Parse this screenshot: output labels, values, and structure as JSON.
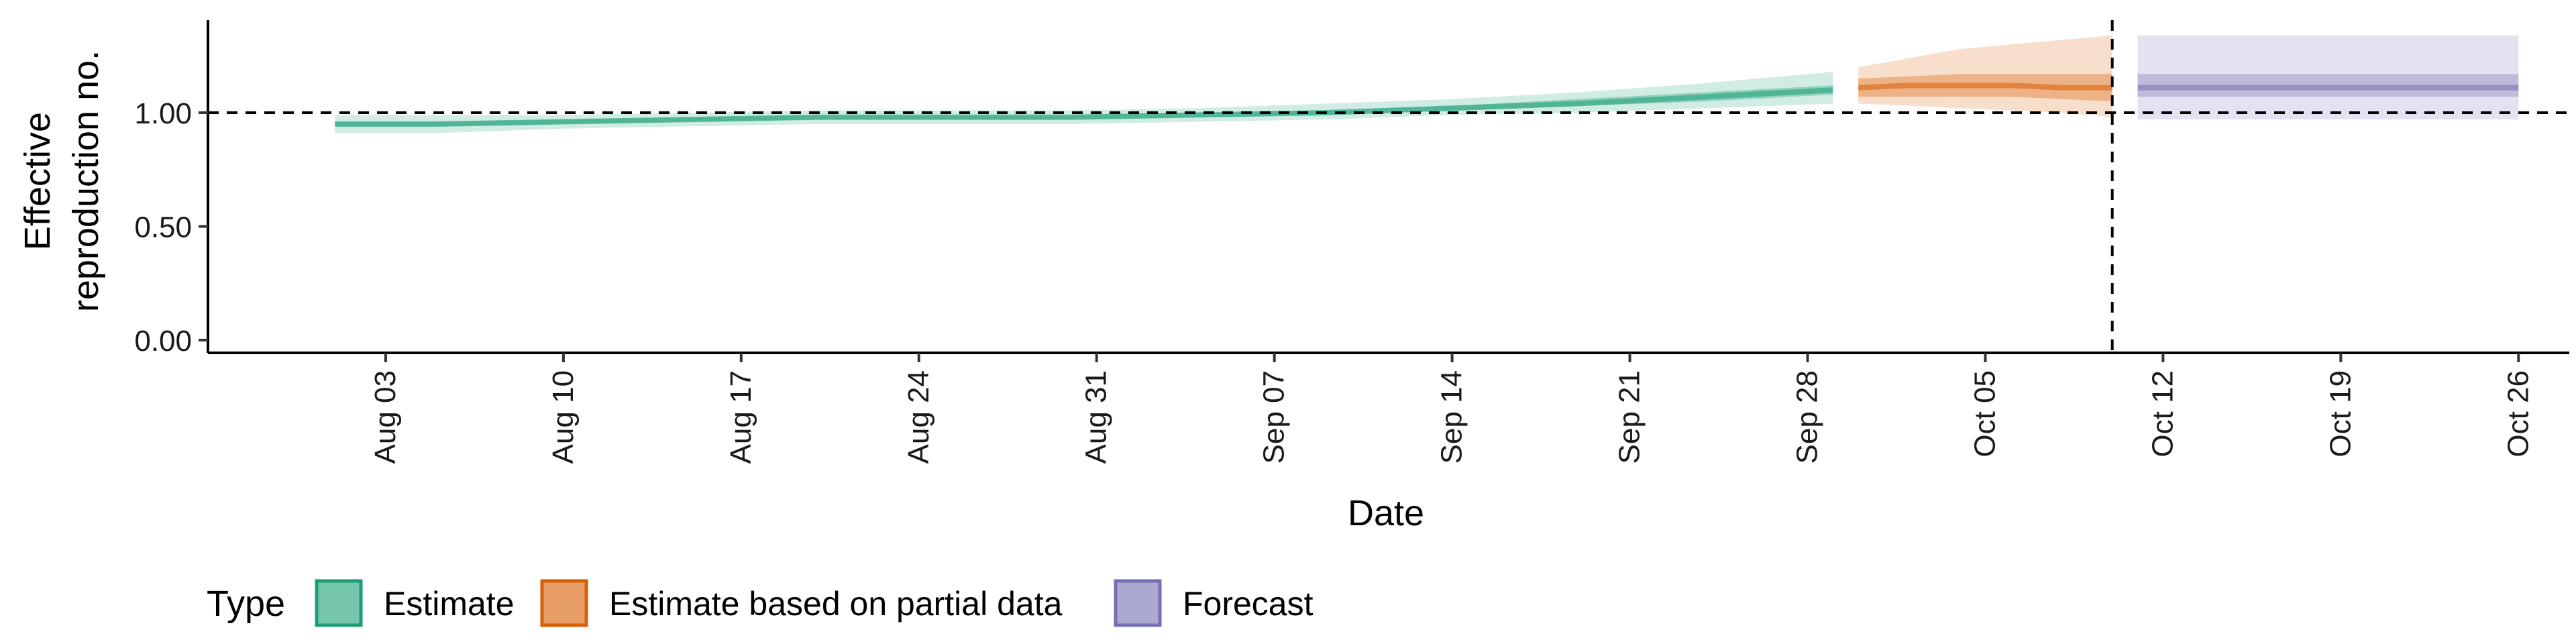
{
  "chart_data": {
    "type": "area",
    "xlabel": "Date",
    "ylabel_lines": [
      "Effective",
      "reproduction no."
    ],
    "x_axis_type": "date",
    "x_range": [
      "2020-07-27",
      "2020-10-28"
    ],
    "ylim": [
      0,
      1.4
    ],
    "y_ticks": [
      0.0,
      0.5,
      1.0
    ],
    "y_tick_labels": [
      "0.00",
      "0.50",
      "1.00"
    ],
    "x_ticks": [
      "2020-08-03",
      "2020-08-10",
      "2020-08-17",
      "2020-08-24",
      "2020-08-31",
      "2020-09-07",
      "2020-09-14",
      "2020-09-21",
      "2020-09-28",
      "2020-10-05",
      "2020-10-12",
      "2020-10-19",
      "2020-10-26"
    ],
    "x_tick_labels": [
      "Aug 03",
      "Aug 10",
      "Aug 17",
      "Aug 24",
      "Aug 31",
      "Sep 07",
      "Sep 14",
      "Sep 21",
      "Sep 28",
      "Oct 05",
      "Oct 12",
      "Oct 19",
      "Oct 26"
    ],
    "reference_lines": {
      "horizontal_y": 1.0,
      "vertical_date": "2020-10-10",
      "style": "dashed"
    },
    "grid": false,
    "legend": {
      "title": "Type",
      "placement": "bottom-left",
      "entries": [
        {
          "label": "Estimate",
          "series": "estimate"
        },
        {
          "label": "Estimate based on partial data",
          "series": "partial"
        },
        {
          "label": "Forecast",
          "series": "forecast"
        }
      ]
    },
    "colors": {
      "estimate": "#1b9e77",
      "partial": "#d95f02",
      "forecast": "#7570b3"
    },
    "series": [
      {
        "key": "estimate",
        "x": [
          "2020-08-01",
          "2020-08-05",
          "2020-08-10",
          "2020-08-15",
          "2020-08-20",
          "2020-08-25",
          "2020-08-30",
          "2020-09-04",
          "2020-09-09",
          "2020-09-14",
          "2020-09-19",
          "2020-09-24",
          "2020-09-29"
        ],
        "median": [
          0.95,
          0.95,
          0.96,
          0.97,
          0.98,
          0.98,
          0.98,
          0.99,
          1.0,
          1.02,
          1.04,
          1.07,
          1.1
        ],
        "lower_50": [
          0.94,
          0.94,
          0.95,
          0.96,
          0.97,
          0.97,
          0.97,
          0.98,
          0.99,
          1.01,
          1.03,
          1.05,
          1.08
        ],
        "upper_50": [
          0.96,
          0.96,
          0.97,
          0.98,
          0.99,
          0.99,
          0.99,
          1.0,
          1.01,
          1.03,
          1.06,
          1.09,
          1.12
        ],
        "lower_90": [
          0.91,
          0.91,
          0.93,
          0.94,
          0.95,
          0.95,
          0.95,
          0.96,
          0.97,
          0.99,
          1.0,
          1.02,
          1.04
        ],
        "upper_90": [
          0.99,
          0.99,
          0.99,
          1.0,
          1.01,
          1.01,
          1.01,
          1.02,
          1.04,
          1.06,
          1.09,
          1.13,
          1.18
        ]
      },
      {
        "key": "partial",
        "x": [
          "2020-09-30",
          "2020-10-02",
          "2020-10-04",
          "2020-10-06",
          "2020-10-08",
          "2020-10-10"
        ],
        "median": [
          1.11,
          1.12,
          1.12,
          1.12,
          1.11,
          1.11
        ],
        "lower_50": [
          1.07,
          1.07,
          1.07,
          1.07,
          1.06,
          1.05
        ],
        "upper_50": [
          1.15,
          1.16,
          1.17,
          1.17,
          1.17,
          1.17
        ],
        "lower_90": [
          1.04,
          1.03,
          1.02,
          1.01,
          1.0,
          0.98
        ],
        "upper_90": [
          1.2,
          1.24,
          1.28,
          1.3,
          1.32,
          1.34
        ]
      },
      {
        "key": "forecast",
        "x": [
          "2020-10-11",
          "2020-10-26"
        ],
        "median": [
          1.11,
          1.11
        ],
        "lower_50": [
          1.07,
          1.07
        ],
        "upper_50": [
          1.17,
          1.17
        ],
        "lower_90": [
          0.97,
          0.97
        ],
        "upper_90": [
          1.34,
          1.34
        ]
      }
    ]
  }
}
